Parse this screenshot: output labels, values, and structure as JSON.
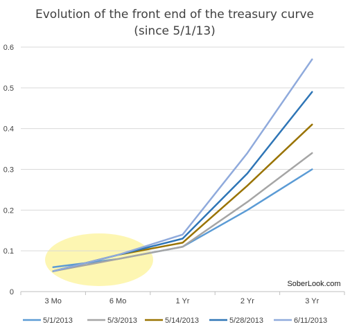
{
  "chart_data": {
    "type": "line",
    "title": "Evolution of the front end of the treasury curve",
    "subtitle": "(since 5/1/13)",
    "xlabel": "",
    "ylabel": "",
    "categories": [
      "3 Mo",
      "6 Mo",
      "1 Yr",
      "2 Yr",
      "3 Yr"
    ],
    "ylim": [
      0,
      0.6
    ],
    "yticks": [
      "0",
      "0.1",
      "0.2",
      "0.3",
      "0.4",
      "0.5",
      "0.6"
    ],
    "grid": true,
    "legend_position": "bottom",
    "series": [
      {
        "name": "5/1/2013",
        "color": "#5b9bd5",
        "values": [
          0.06,
          0.08,
          0.11,
          0.2,
          0.3
        ]
      },
      {
        "name": "5/3/2013",
        "color": "#a5a5a5",
        "values": [
          0.05,
          0.08,
          0.11,
          0.22,
          0.34
        ]
      },
      {
        "name": "5/14/2013",
        "color": "#997300",
        "values": [
          0.05,
          0.09,
          0.12,
          0.26,
          0.41
        ]
      },
      {
        "name": "5/28/2013",
        "color": "#2e75b6",
        "values": [
          0.05,
          0.09,
          0.13,
          0.29,
          0.49
        ]
      },
      {
        "name": "6/11/2013",
        "color": "#8faadc",
        "values": [
          0.05,
          0.09,
          0.14,
          0.34,
          0.57
        ]
      }
    ],
    "annotation": "SoberLook.com",
    "highlight_color": "#fdf6b2"
  }
}
